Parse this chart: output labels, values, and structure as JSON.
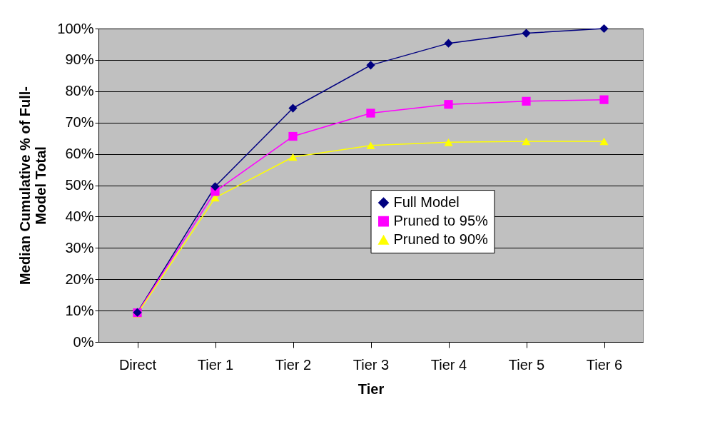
{
  "chart_data": {
    "type": "line",
    "xlabel": "Tier",
    "ylabel": [
      "Median Cumulative % of Full-",
      "Model Total"
    ],
    "categories": [
      "Direct",
      "Tier 1",
      "Tier 2",
      "Tier 3",
      "Tier 4",
      "Tier 5",
      "Tier 6"
    ],
    "series": [
      {
        "name": "Full Model",
        "color": "#000080",
        "marker": "diamond",
        "values": [
          9.4,
          49.6,
          74.6,
          88.3,
          95.3,
          98.5,
          100
        ]
      },
      {
        "name": "Pruned to 95%",
        "color": "#ff00ff",
        "marker": "square",
        "values": [
          9.3,
          48,
          65.6,
          73,
          75.8,
          76.8,
          77.3
        ]
      },
      {
        "name": "Pruned to 90%",
        "color": "#ffff00",
        "marker": "triangle",
        "values": [
          9,
          46,
          59,
          62.7,
          63.7,
          64,
          64
        ]
      }
    ],
    "ylim": [
      0,
      100
    ],
    "yticks": [
      {
        "value": 0,
        "label": "0%"
      },
      {
        "value": 10,
        "label": "10%"
      },
      {
        "value": 20,
        "label": "20%"
      },
      {
        "value": 30,
        "label": "30%"
      },
      {
        "value": 40,
        "label": "40%"
      },
      {
        "value": 50,
        "label": "50%"
      },
      {
        "value": 60,
        "label": "60%"
      },
      {
        "value": 70,
        "label": "70%"
      },
      {
        "value": 80,
        "label": "80%"
      },
      {
        "value": 90,
        "label": "90%"
      },
      {
        "value": 100,
        "label": "100%"
      }
    ],
    "grid": "y",
    "legend": "center"
  }
}
